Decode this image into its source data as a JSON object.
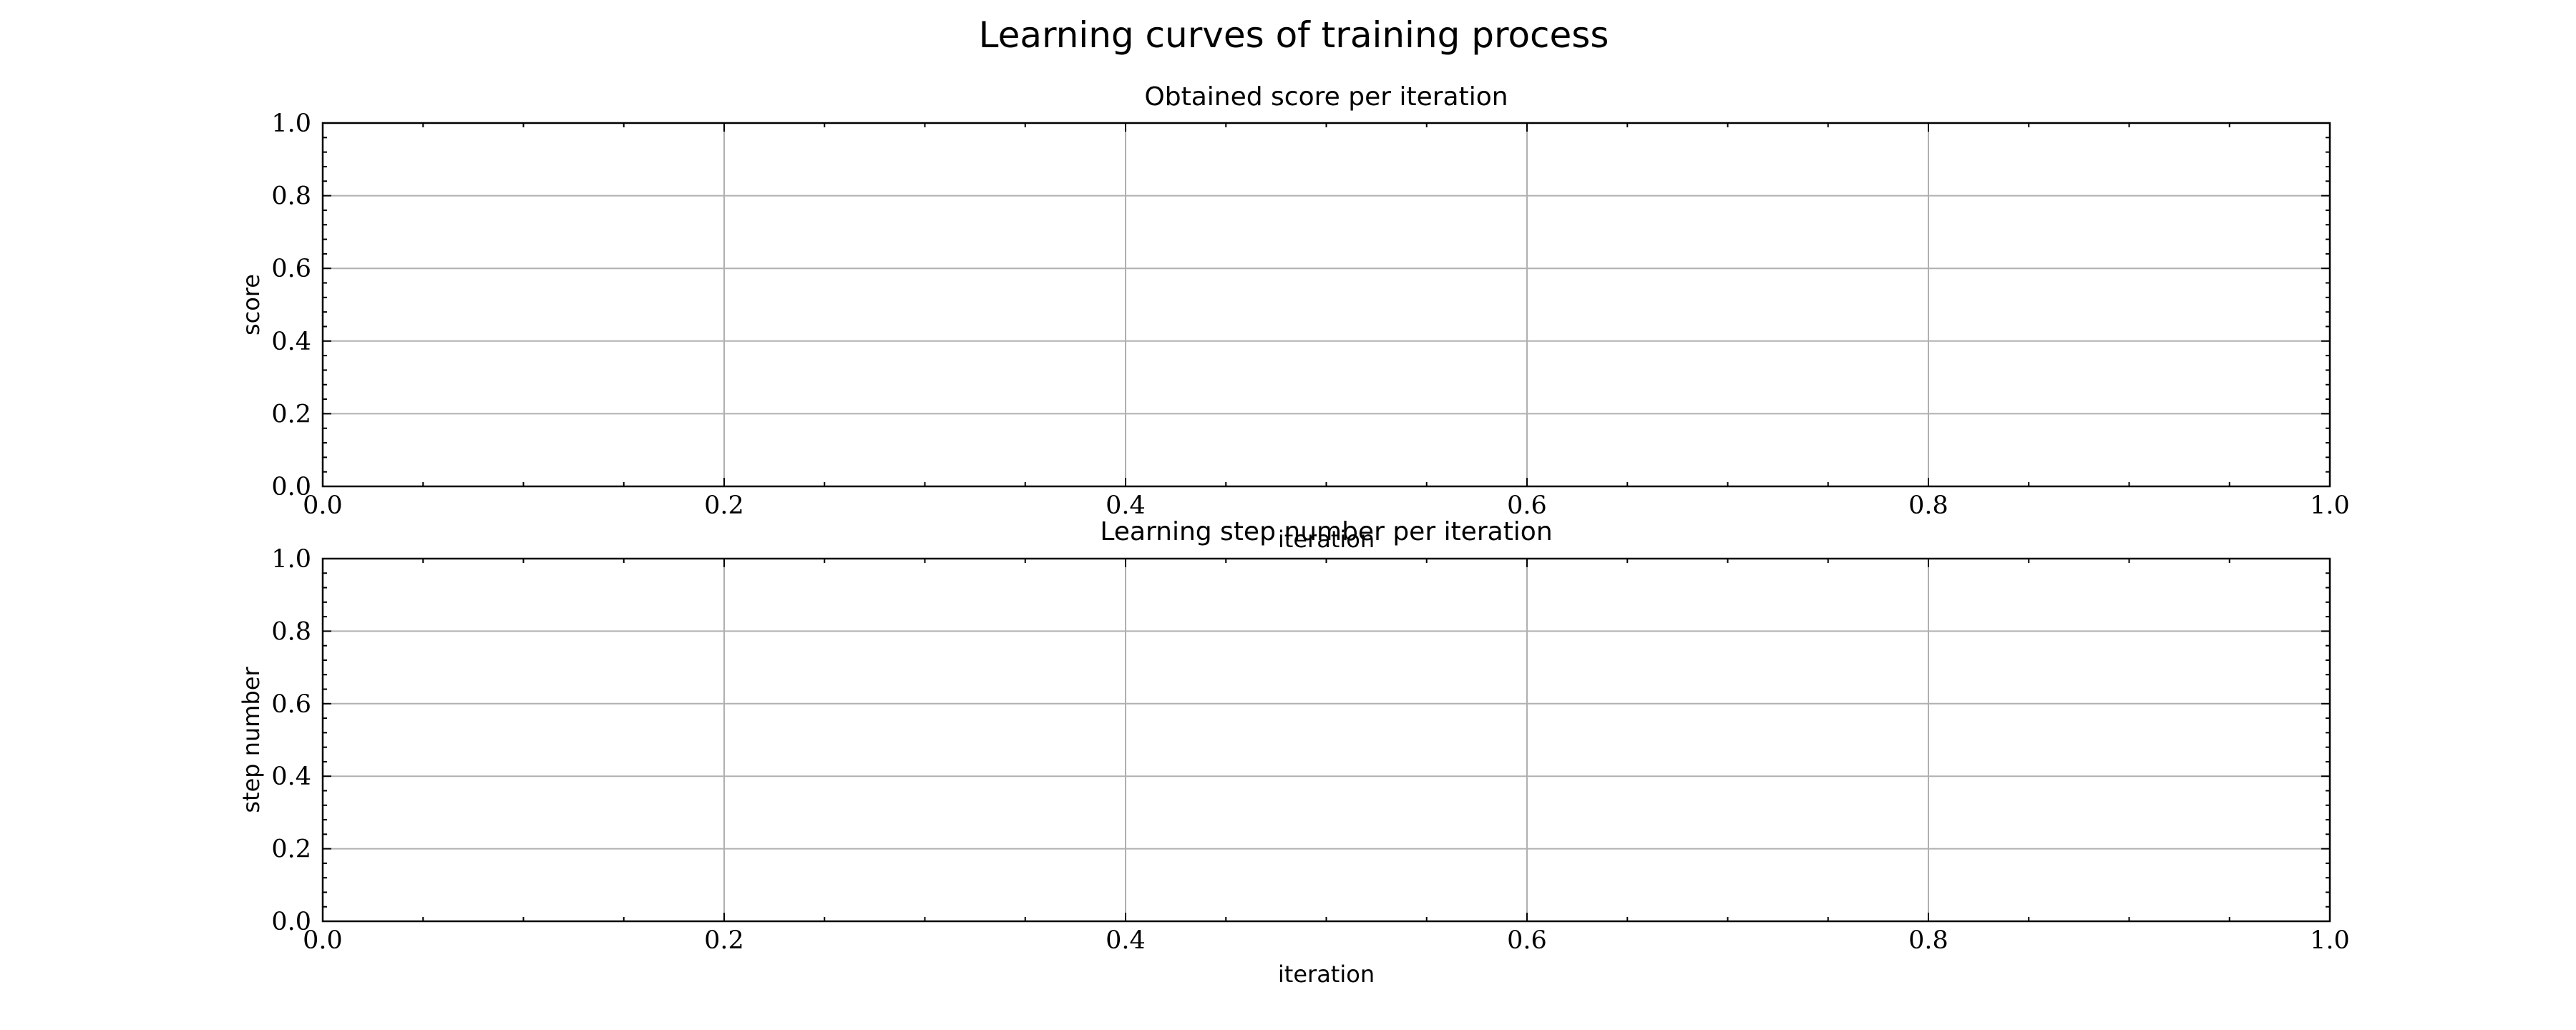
{
  "suptitle": "Learning curves of training process",
  "chart_data": [
    {
      "type": "line",
      "title": "Obtained score per iteration",
      "xlabel": "iteration",
      "ylabel": "score",
      "xlim": [
        0.0,
        1.0
      ],
      "ylim": [
        0.0,
        1.0
      ],
      "xticks": [
        "0.0",
        "0.2",
        "0.4",
        "0.6",
        "0.8",
        "1.0"
      ],
      "yticks": [
        "0.0",
        "0.2",
        "0.4",
        "0.6",
        "0.8",
        "1.0"
      ],
      "grid": true,
      "series": []
    },
    {
      "type": "line",
      "title": "Learning step number per iteration",
      "xlabel": "iteration",
      "ylabel": "step number",
      "xlim": [
        0.0,
        1.0
      ],
      "ylim": [
        0.0,
        1.0
      ],
      "xticks": [
        "0.0",
        "0.2",
        "0.4",
        "0.6",
        "0.8",
        "1.0"
      ],
      "yticks": [
        "0.0",
        "0.2",
        "0.4",
        "0.6",
        "0.8",
        "1.0"
      ],
      "grid": true,
      "series": []
    }
  ]
}
